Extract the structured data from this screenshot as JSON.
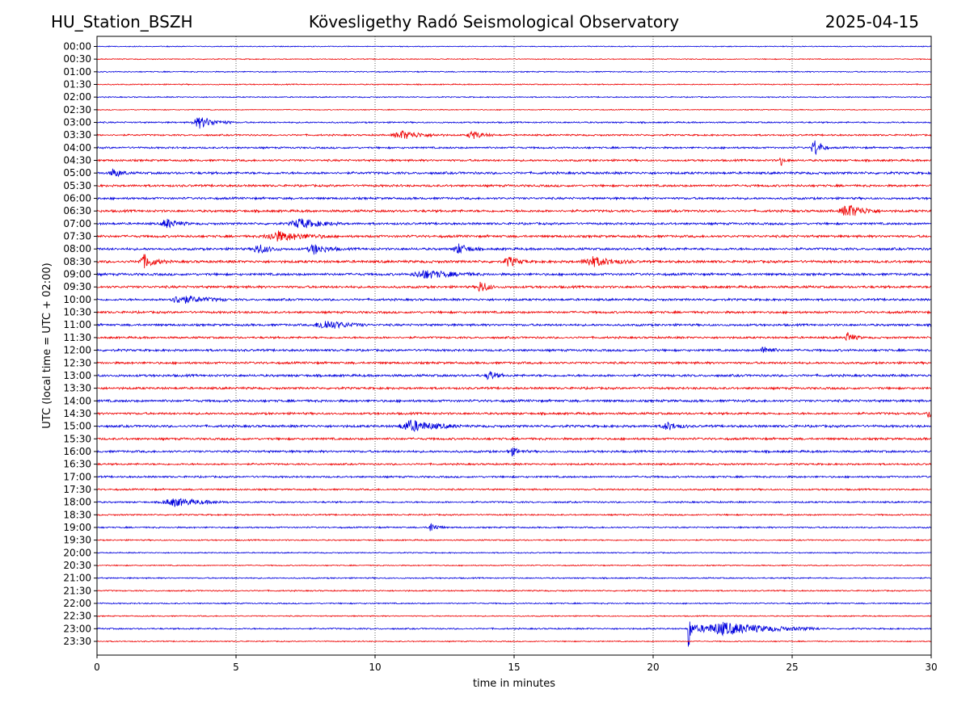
{
  "header": {
    "station": "HU_Station_BSZH",
    "observatory": "Kövesligethy Radó Seismological Observatory",
    "date": "2025-04-15"
  },
  "chart_data": {
    "type": "line",
    "title": "Kövesligethy Radó Seismological Observatory",
    "xlabel": "time in minutes",
    "ylabel": "UTC (local time = UTC + 02:00)",
    "xlim": [
      0,
      30
    ],
    "x_ticks": [
      0,
      5,
      10,
      15,
      20,
      25,
      30
    ],
    "grid_x": true,
    "row_labels": [
      "00:00",
      "00:30",
      "01:00",
      "01:30",
      "02:00",
      "02:30",
      "03:00",
      "03:30",
      "04:00",
      "04:30",
      "05:00",
      "05:30",
      "06:00",
      "06:30",
      "07:00",
      "07:30",
      "08:00",
      "08:30",
      "09:00",
      "09:30",
      "10:00",
      "10:30",
      "11:00",
      "11:30",
      "12:00",
      "12:30",
      "13:00",
      "13:30",
      "14:00",
      "14:30",
      "15:00",
      "15:30",
      "16:00",
      "16:30",
      "17:00",
      "17:30",
      "18:00",
      "18:30",
      "19:00",
      "19:30",
      "20:00",
      "20:30",
      "21:00",
      "21:30",
      "22:00",
      "22:30",
      "23:00",
      "23:30"
    ],
    "colors": [
      "#0000dd",
      "#ee0000"
    ],
    "noise_level": [
      0.5,
      0.5,
      0.6,
      0.6,
      0.6,
      0.5,
      0.8,
      0.9,
      1.0,
      1.1,
      1.3,
      1.2,
      1.2,
      1.3,
      1.2,
      1.3,
      1.3,
      1.4,
      1.3,
      1.3,
      1.2,
      1.2,
      1.2,
      1.1,
      1.2,
      1.2,
      1.3,
      1.2,
      1.3,
      1.2,
      1.3,
      1.2,
      1.2,
      1.0,
      1.0,
      0.9,
      0.9,
      0.8,
      0.8,
      0.7,
      0.6,
      0.6,
      0.7,
      0.7,
      0.7,
      0.6,
      0.8,
      0.6
    ],
    "bursts": [
      {
        "row": 6,
        "minute": 3.7,
        "amplitude": 7,
        "duration": 1.2
      },
      {
        "row": 7,
        "minute": 11.0,
        "amplitude": 5,
        "duration": 1.5
      },
      {
        "row": 7,
        "minute": 13.5,
        "amplitude": 5,
        "duration": 0.8
      },
      {
        "row": 8,
        "minute": 25.8,
        "amplitude": 11,
        "duration": 0.5
      },
      {
        "row": 9,
        "minute": 24.6,
        "amplitude": 6,
        "duration": 0.2
      },
      {
        "row": 10,
        "minute": 0.6,
        "amplitude": 5,
        "duration": 0.6
      },
      {
        "row": 13,
        "minute": 27.0,
        "amplitude": 8,
        "duration": 1.2
      },
      {
        "row": 14,
        "minute": 2.5,
        "amplitude": 6,
        "duration": 0.8
      },
      {
        "row": 14,
        "minute": 7.3,
        "amplitude": 6,
        "duration": 1.5
      },
      {
        "row": 15,
        "minute": 6.5,
        "amplitude": 6,
        "duration": 2.0
      },
      {
        "row": 16,
        "minute": 5.8,
        "amplitude": 6,
        "duration": 0.8
      },
      {
        "row": 16,
        "minute": 7.8,
        "amplitude": 6,
        "duration": 1.0
      },
      {
        "row": 16,
        "minute": 13.0,
        "amplitude": 6,
        "duration": 0.8
      },
      {
        "row": 17,
        "minute": 1.7,
        "amplitude": 8,
        "duration": 0.8
      },
      {
        "row": 17,
        "minute": 14.8,
        "amplitude": 6,
        "duration": 0.7
      },
      {
        "row": 17,
        "minute": 17.8,
        "amplitude": 6,
        "duration": 1.5
      },
      {
        "row": 18,
        "minute": 11.8,
        "amplitude": 5,
        "duration": 2.0
      },
      {
        "row": 19,
        "minute": 13.8,
        "amplitude": 8,
        "duration": 0.5
      },
      {
        "row": 20,
        "minute": 3.0,
        "amplitude": 5,
        "duration": 1.8
      },
      {
        "row": 22,
        "minute": 8.2,
        "amplitude": 6,
        "duration": 1.5
      },
      {
        "row": 23,
        "minute": 27.0,
        "amplitude": 6,
        "duration": 0.5
      },
      {
        "row": 24,
        "minute": 24.0,
        "amplitude": 5,
        "duration": 0.6
      },
      {
        "row": 26,
        "minute": 14.1,
        "amplitude": 6,
        "duration": 0.5
      },
      {
        "row": 29,
        "minute": 29.9,
        "amplitude": 5,
        "duration": 0.3
      },
      {
        "row": 30,
        "minute": 11.3,
        "amplitude": 7,
        "duration": 1.8
      },
      {
        "row": 30,
        "minute": 20.5,
        "amplitude": 5,
        "duration": 0.8
      },
      {
        "row": 32,
        "minute": 14.9,
        "amplitude": 5,
        "duration": 0.6
      },
      {
        "row": 36,
        "minute": 2.8,
        "amplitude": 5,
        "duration": 2.0
      },
      {
        "row": 38,
        "minute": 12.0,
        "amplitude": 6,
        "duration": 0.5
      },
      {
        "row": 46,
        "minute": 21.3,
        "amplitude": 32,
        "duration": 0.15
      },
      {
        "row": 46,
        "minute": 22.5,
        "amplitude": 8,
        "duration": 3.5
      }
    ]
  }
}
